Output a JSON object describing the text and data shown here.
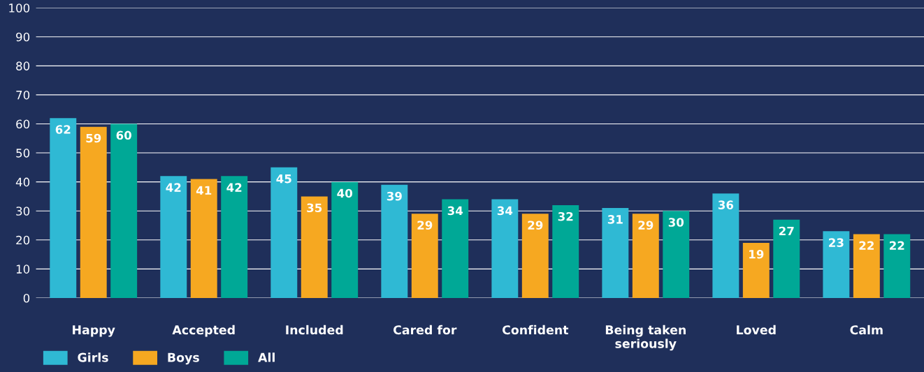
{
  "chart_data": {
    "type": "bar",
    "categories": [
      "Happy",
      "Accepted",
      "Included",
      "Cared for",
      "Confident",
      "Being taken\nseriously",
      "Loved",
      "Calm"
    ],
    "series": [
      {
        "name": "Girls",
        "color": "#2fb9d4",
        "values": [
          62,
          42,
          45,
          39,
          34,
          31,
          36,
          23
        ]
      },
      {
        "name": "Boys",
        "color": "#f6a821",
        "values": [
          59,
          41,
          35,
          29,
          29,
          29,
          19,
          22
        ]
      },
      {
        "name": "All",
        "color": "#00a896",
        "values": [
          60,
          42,
          40,
          34,
          32,
          30,
          27,
          22
        ]
      }
    ],
    "ylim": [
      0,
      100
    ],
    "yticks": [
      0,
      10,
      20,
      30,
      40,
      50,
      60,
      70,
      80,
      90,
      100
    ],
    "grid": "y",
    "legend": "bottom left",
    "data_labels": true
  }
}
